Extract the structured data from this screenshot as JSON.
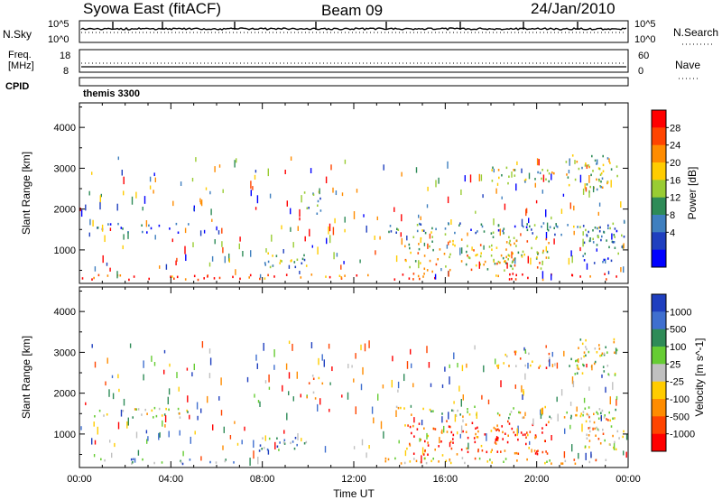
{
  "header": {
    "station": "Syowa East (fitACF)",
    "beam": "Beam 09",
    "date": "24/Jan/2010"
  },
  "top_panels": {
    "nsky": {
      "label": "N.Sky",
      "ticks": [
        "10^5",
        "10^0"
      ],
      "right_label": "N.Search",
      "right_ticks": [
        "10^5",
        "10^0"
      ]
    },
    "freq": {
      "label_lines": [
        "Freq.",
        "[MHz]"
      ],
      "ticks": [
        "18",
        "8"
      ],
      "right_label": "Nave",
      "right_ticks": [
        "60",
        "0"
      ]
    },
    "cpid": {
      "label": "CPID",
      "value": "themis 3300"
    }
  },
  "chart_data": [
    {
      "type": "heatmap",
      "title": "",
      "quantity": "Power",
      "xlabel": "",
      "ylabel": "Slant Range [km]",
      "xlim": [
        0,
        24
      ],
      "ylim": [
        180,
        4600
      ],
      "y_ticks": [
        1000,
        2000,
        3000,
        4000
      ],
      "colorbar": {
        "label": "Power [dB]",
        "ticks": [
          "28",
          "24",
          "20",
          "16",
          "12",
          "8",
          "4"
        ],
        "colors": [
          "#ff0000",
          "#ff4400",
          "#ff8c00",
          "#ffcc00",
          "#99cc33",
          "#2e8b57",
          "#3f7fbf",
          "#1f3fbf",
          "#0000ff"
        ]
      },
      "regions": [
        {
          "t": [
            0.1,
            14.0
          ],
          "r": [
            250,
            380
          ],
          "level": 0.85
        },
        {
          "t": [
            14.0,
            23.6
          ],
          "r": [
            250,
            400
          ],
          "level": 0.9
        },
        {
          "t": [
            0.5,
            4.8
          ],
          "r": [
            1380,
            1620
          ],
          "level": 0.2
        },
        {
          "t": [
            13.5,
            23.5
          ],
          "r": [
            1350,
            1650
          ],
          "level": 0.35
        },
        {
          "t": [
            9.8,
            10.6
          ],
          "r": [
            1800,
            2500
          ],
          "level": 0.4
        },
        {
          "t": [
            14.2,
            20.5
          ],
          "r": [
            450,
            1300
          ],
          "level": 0.6
        },
        {
          "t": [
            21.2,
            23.5
          ],
          "r": [
            2400,
            3300
          ],
          "level": 0.5
        },
        {
          "t": [
            7.8,
            10.0
          ],
          "r": [
            550,
            950
          ],
          "level": 0.45
        },
        {
          "t": [
            18.0,
            20.8
          ],
          "r": [
            2600,
            3000
          ],
          "level": 0.5
        },
        {
          "t": [
            22.0,
            23.8
          ],
          "r": [
            600,
            1600
          ],
          "level": 0.3
        }
      ]
    },
    {
      "type": "heatmap",
      "title": "",
      "quantity": "Velocity",
      "xlabel": "Time UT",
      "ylabel": "Slant Range [km]",
      "xlim": [
        0,
        24
      ],
      "ylim": [
        180,
        4600
      ],
      "y_ticks": [
        1000,
        2000,
        3000,
        4000
      ],
      "x_ticks": [
        "00:00",
        "04:00",
        "08:00",
        "12:00",
        "16:00",
        "20:00",
        "00:00"
      ],
      "colorbar": {
        "label": "Velocity [m s^-1]",
        "ticks": [
          "1000",
          "500",
          "100",
          "25",
          "-25",
          "-100",
          "-500",
          "-1000"
        ],
        "colors": [
          "#1f3fbf",
          "#3f6fcf",
          "#2e8b57",
          "#66cc33",
          "#c0c0c0",
          "#ffcc00",
          "#ff8c00",
          "#ff4400",
          "#ff0000"
        ]
      },
      "regions": [
        {
          "t": [
            0.1,
            7.0
          ],
          "r": [
            250,
            380
          ],
          "level": 0.7
        },
        {
          "t": [
            13.2,
            23.6
          ],
          "r": [
            250,
            400
          ],
          "level": 0.4
        },
        {
          "t": [
            0.5,
            4.8
          ],
          "r": [
            1380,
            1620
          ],
          "level": 0.5
        },
        {
          "t": [
            13.5,
            23.5
          ],
          "r": [
            1350,
            1650
          ],
          "level": 0.5
        },
        {
          "t": [
            9.8,
            10.6
          ],
          "r": [
            1800,
            2500
          ],
          "level": 0.45
        },
        {
          "t": [
            14.2,
            20.5
          ],
          "r": [
            450,
            1300
          ],
          "level": 0.15
        },
        {
          "t": [
            21.2,
            23.5
          ],
          "r": [
            2400,
            3300
          ],
          "level": 0.5
        },
        {
          "t": [
            7.8,
            10.0
          ],
          "r": [
            550,
            950
          ],
          "level": 0.7
        },
        {
          "t": [
            18.0,
            20.8
          ],
          "r": [
            2600,
            3000
          ],
          "level": 0.3
        },
        {
          "t": [
            22.0,
            23.8
          ],
          "r": [
            600,
            1600
          ],
          "level": 0.4
        }
      ]
    }
  ]
}
